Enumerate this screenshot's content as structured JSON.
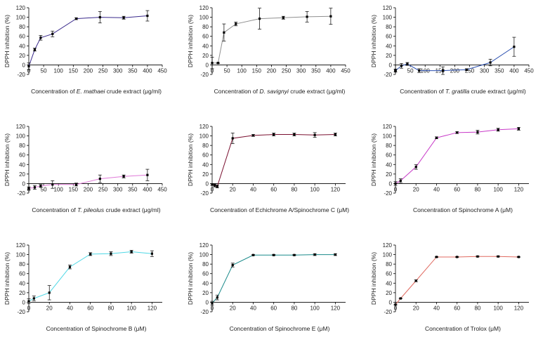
{
  "chart_data": [
    {
      "type": "line",
      "ylabel": "DPPH inhibition (%)",
      "xlabel_parts": [
        "Concentration of ",
        "E. mathaei",
        " crude extract (μg/ml)"
      ],
      "xlim": [
        0,
        450
      ],
      "xticks": [
        0,
        50,
        100,
        150,
        200,
        250,
        300,
        350,
        400,
        450
      ],
      "ylim": [
        -20,
        120
      ],
      "yticks": [
        -20,
        0,
        20,
        40,
        60,
        80,
        100,
        120
      ],
      "color": "#3a2a8c",
      "series": [
        {
          "x": [
            0,
            20,
            40,
            80,
            160,
            240,
            320,
            400
          ],
          "y": [
            -3,
            32,
            57,
            65,
            97,
            100,
            99,
            103
          ],
          "err": [
            7,
            3,
            5,
            6,
            2,
            12,
            3,
            11
          ]
        }
      ]
    },
    {
      "type": "line",
      "ylabel": "DPPH inhibition (%)",
      "xlabel_parts": [
        "Concentration of ",
        "D. savignyi",
        " crude extract (μg/ml)"
      ],
      "xlim": [
        0,
        450
      ],
      "xticks": [
        0,
        50,
        100,
        150,
        200,
        250,
        300,
        350,
        400,
        450
      ],
      "ylim": [
        -20,
        120
      ],
      "yticks": [
        -20,
        0,
        20,
        40,
        60,
        80,
        100,
        120
      ],
      "color": "#909090",
      "series": [
        {
          "x": [
            0,
            20,
            40,
            80,
            160,
            240,
            320,
            400
          ],
          "y": [
            4,
            4,
            68,
            86,
            97,
            99,
            101,
            102
          ],
          "err": [
            12,
            1,
            18,
            4,
            22,
            3,
            11,
            17
          ]
        }
      ]
    },
    {
      "type": "line",
      "ylabel": "DPPH inhibition (%)",
      "xlabel_parts": [
        "Concentration of ",
        "T. gratilla",
        " crude extract (μg/ml)"
      ],
      "xlim": [
        0,
        450
      ],
      "xticks": [
        0,
        50,
        100,
        150,
        200,
        250,
        300,
        350,
        400,
        450
      ],
      "ylim": [
        -20,
        120
      ],
      "yticks": [
        -20,
        0,
        20,
        40,
        60,
        80,
        100,
        120
      ],
      "color": "#2a4fb0",
      "series": [
        {
          "x": [
            0,
            20,
            40,
            80,
            160,
            240,
            320,
            400
          ],
          "y": [
            -12,
            -2,
            2,
            -12,
            -12,
            -10,
            5,
            38
          ],
          "err": [
            3,
            5,
            3,
            4,
            8,
            2,
            7,
            20
          ]
        }
      ]
    },
    {
      "type": "line",
      "ylabel": "DPPH inhibition (%)",
      "xlabel_parts": [
        "Concentration of ",
        "T. pileolus",
        " crude extract (μg/ml)"
      ],
      "xlim": [
        0,
        450
      ],
      "xticks": [
        0,
        50,
        100,
        150,
        200,
        250,
        300,
        350,
        400,
        450
      ],
      "ylim": [
        -20,
        120
      ],
      "yticks": [
        -20,
        0,
        20,
        40,
        60,
        80,
        100,
        120
      ],
      "color": "#e07ad8",
      "series": [
        {
          "x": [
            0,
            20,
            40,
            80,
            160,
            240,
            320,
            400
          ],
          "y": [
            -10,
            -8,
            -5,
            -2,
            -2,
            10,
            15,
            18
          ],
          "err": [
            3,
            4,
            3,
            8,
            3,
            8,
            3,
            12
          ]
        }
      ]
    },
    {
      "type": "line",
      "ylabel": "DPPH inhibition (%)",
      "xlabel_parts": [
        "Concentration of Echichrome A/Spinochrome C (μM)"
      ],
      "xlim": [
        0,
        130
      ],
      "xticks": [
        0,
        20,
        40,
        60,
        80,
        100,
        120
      ],
      "ylim": [
        -20,
        120
      ],
      "yticks": [
        -20,
        0,
        20,
        40,
        60,
        80,
        100,
        120
      ],
      "color": "#7a1030",
      "series": [
        {
          "x": [
            0,
            2.5,
            5,
            20,
            40,
            60,
            80,
            100,
            120
          ],
          "y": [
            -2,
            -4,
            -6,
            95,
            101,
            103,
            103,
            102,
            103
          ],
          "err": [
            2,
            3,
            3,
            11,
            2,
            3,
            3,
            5,
            3
          ]
        }
      ]
    },
    {
      "type": "line",
      "ylabel": "DPPH inhibition (%)",
      "xlabel_parts": [
        "Concentration of Spinochrome A (μM)"
      ],
      "xlim": [
        0,
        130
      ],
      "xticks": [
        0,
        20,
        40,
        60,
        80,
        100,
        120
      ],
      "ylim": [
        -20,
        120
      ],
      "yticks": [
        -20,
        0,
        20,
        40,
        60,
        80,
        100,
        120
      ],
      "color": "#c83ac8",
      "series": [
        {
          "x": [
            0,
            5,
            20,
            40,
            60,
            80,
            100,
            120
          ],
          "y": [
            0,
            6,
            35,
            96,
            107,
            108,
            113,
            115
          ],
          "err": [
            4,
            4,
            5,
            2,
            2,
            4,
            3,
            3
          ]
        }
      ]
    },
    {
      "type": "line",
      "ylabel": "DPPH inhibition (%)",
      "xlabel_parts": [
        "Concentration of Spinochrome B (μM)"
      ],
      "xlim": [
        0,
        130
      ],
      "xticks": [
        0,
        20,
        40,
        60,
        80,
        100,
        120
      ],
      "ylim": [
        -20,
        120
      ],
      "yticks": [
        -20,
        0,
        20,
        40,
        60,
        80,
        100,
        120
      ],
      "color": "#4fd8e6",
      "series": [
        {
          "x": [
            0,
            5,
            20,
            40,
            60,
            80,
            100,
            120
          ],
          "y": [
            2,
            8,
            20,
            74,
            101,
            102,
            106,
            102
          ],
          "err": [
            5,
            5,
            15,
            4,
            3,
            4,
            3,
            6
          ]
        }
      ]
    },
    {
      "type": "line",
      "ylabel": "DPPH inhibition (%)",
      "xlabel_parts": [
        "Concentration of Spinochrome E (μM)"
      ],
      "xlim": [
        0,
        130
      ],
      "xticks": [
        0,
        20,
        40,
        60,
        80,
        100,
        120
      ],
      "ylim": [
        -20,
        120
      ],
      "yticks": [
        -20,
        0,
        20,
        40,
        60,
        80,
        100,
        120
      ],
      "color": "#1a8a8a",
      "series": [
        {
          "x": [
            0,
            5,
            20,
            40,
            60,
            80,
            100,
            120
          ],
          "y": [
            -2,
            10,
            78,
            99,
            99,
            99,
            100,
            100
          ],
          "err": [
            4,
            5,
            4,
            1,
            1,
            1,
            2,
            2
          ]
        }
      ]
    },
    {
      "type": "line",
      "ylabel": "DPPH inhibition (%)",
      "xlabel_parts": [
        "Concentration of Trolox (μM)"
      ],
      "xlim": [
        0,
        130
      ],
      "xticks": [
        0,
        20,
        40,
        60,
        80,
        100,
        120
      ],
      "ylim": [
        -20,
        120
      ],
      "yticks": [
        -20,
        0,
        20,
        40,
        60,
        80,
        100,
        120
      ],
      "color": "#e06a60",
      "series": [
        {
          "x": [
            0,
            5,
            20,
            40,
            60,
            80,
            100,
            120
          ],
          "y": [
            -5,
            8,
            45,
            95,
            95,
            96,
            96,
            95
          ],
          "err": [
            1,
            1,
            2,
            1,
            1,
            1,
            1,
            1
          ]
        }
      ]
    }
  ]
}
